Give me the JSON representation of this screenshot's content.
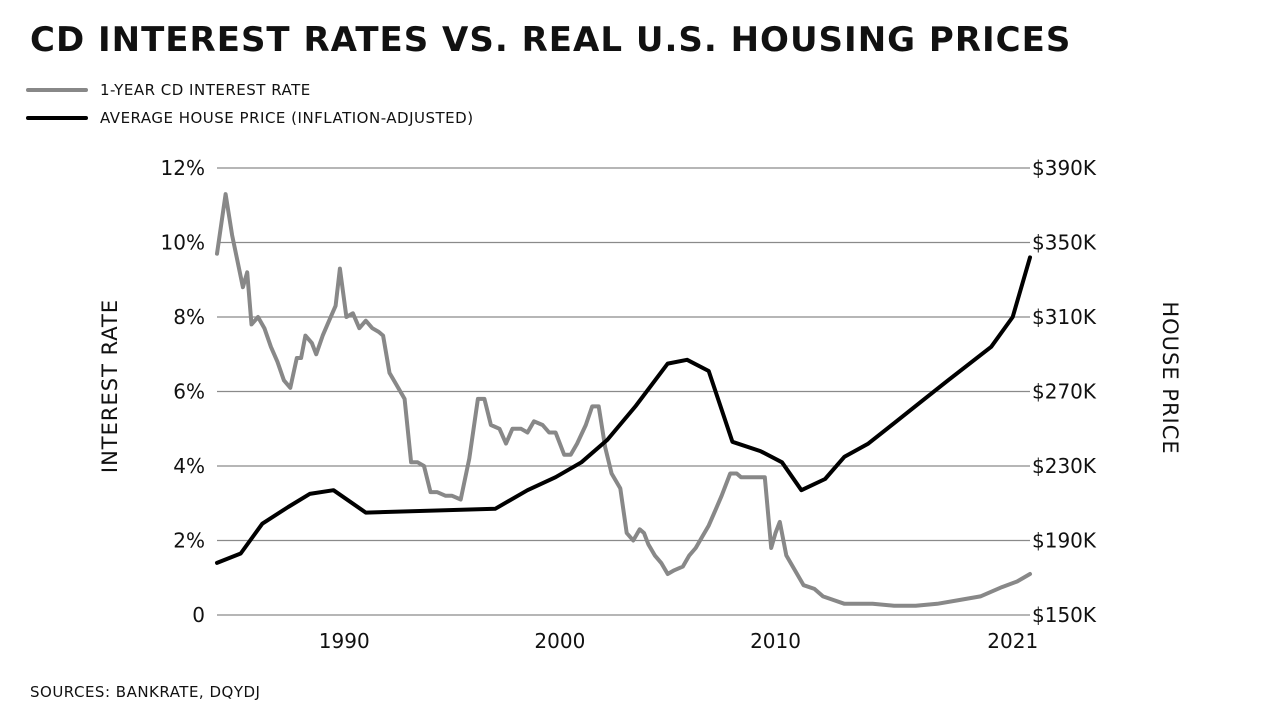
{
  "chart_data": {
    "type": "line",
    "title": "CD INTEREST RATES VS. REAL U.S. HOUSING PRICES",
    "source": "SOURCES: BANKRATE, DQYDJ",
    "x_ticks": [
      "1990",
      "2000",
      "2010",
      "2021"
    ],
    "xlim": [
      1984.1,
      2021.8
    ],
    "left_axis": {
      "label": "INTEREST RATE",
      "ticks": [
        "0",
        "2%",
        "4%",
        "6%",
        "8%",
        "10%",
        "12%"
      ],
      "tick_values": [
        0,
        2,
        4,
        6,
        8,
        10,
        12
      ],
      "ylim": [
        0,
        12
      ]
    },
    "right_axis": {
      "label": "HOUSE PRICE",
      "ticks": [
        "$150K",
        "$190K",
        "$230K",
        "$270K",
        "$310K",
        "$350K",
        "$390K"
      ],
      "tick_values": [
        150000,
        190000,
        230000,
        270000,
        310000,
        350000,
        390000
      ],
      "ylim": [
        150000,
        390000
      ]
    },
    "grid": true,
    "legend_position": "top-left",
    "series": [
      {
        "name": "1-YEAR CD INTEREST RATE",
        "color": "#888888",
        "axis": "left",
        "x": [
          1984.1,
          1984.5,
          1984.8,
          1985.3,
          1985.5,
          1985.7,
          1986.0,
          1986.3,
          1986.6,
          1986.9,
          1987.2,
          1987.5,
          1987.8,
          1988.0,
          1988.2,
          1988.5,
          1988.7,
          1989.0,
          1989.3,
          1989.6,
          1989.8,
          1990.1,
          1990.4,
          1990.7,
          1991.0,
          1991.3,
          1991.6,
          1991.8,
          1992.1,
          1992.4,
          1992.8,
          1993.1,
          1993.4,
          1993.7,
          1994.0,
          1994.3,
          1994.7,
          1995.0,
          1995.4,
          1995.8,
          1996.2,
          1996.5,
          1996.8,
          1997.2,
          1997.5,
          1997.8,
          1998.2,
          1998.5,
          1998.8,
          1999.2,
          1999.5,
          1999.8,
          2000.2,
          2000.5,
          2000.8,
          2001.2,
          2001.5,
          2001.8,
          2002.1,
          2002.4,
          2002.8,
          2003.1,
          2003.4,
          2003.7,
          2003.9,
          2004.1,
          2004.4,
          2004.7,
          2005.0,
          2005.3,
          2005.7,
          2006.0,
          2006.3,
          2006.6,
          2006.9,
          2007.2,
          2007.5,
          2007.9,
          2008.2,
          2008.4,
          2008.6,
          2008.9,
          2009.2,
          2009.5,
          2009.8,
          2010.0,
          2010.2,
          2010.5,
          2010.8,
          2011.3,
          2011.8,
          2012.2,
          2012.7,
          2013.2,
          2013.7,
          2014.5,
          2015.5,
          2016.5,
          2017.5,
          2018.5,
          2019.5,
          2020.5,
          2021.2,
          2021.8
        ],
        "y": [
          9.7,
          11.3,
          10.2,
          8.8,
          9.2,
          7.8,
          8.0,
          7.7,
          7.2,
          6.8,
          6.3,
          6.1,
          6.9,
          6.9,
          7.5,
          7.3,
          7.0,
          7.5,
          7.9,
          8.3,
          9.3,
          8.0,
          8.1,
          7.7,
          7.9,
          7.7,
          7.6,
          7.5,
          6.5,
          6.2,
          5.8,
          4.1,
          4.1,
          4.0,
          3.3,
          3.3,
          3.2,
          3.2,
          3.1,
          4.2,
          5.8,
          5.8,
          5.1,
          5.0,
          4.6,
          5.0,
          5.0,
          4.9,
          5.2,
          5.1,
          4.9,
          4.9,
          4.3,
          4.3,
          4.6,
          5.1,
          5.6,
          5.6,
          4.5,
          3.8,
          3.4,
          2.2,
          2.0,
          2.3,
          2.2,
          1.9,
          1.6,
          1.4,
          1.1,
          1.2,
          1.3,
          1.6,
          1.8,
          2.1,
          2.4,
          2.8,
          3.2,
          3.8,
          3.8,
          3.7,
          3.7,
          3.7,
          3.7,
          3.7,
          1.8,
          2.2,
          2.5,
          1.6,
          1.3,
          0.8,
          0.7,
          0.5,
          0.4,
          0.3,
          0.3,
          0.3,
          0.25,
          0.25,
          0.3,
          0.4,
          0.5,
          0.75,
          0.9,
          1.1
        ]
      },
      {
        "name": "AVERAGE HOUSE PRICE (INFLATION-ADJUSTED)",
        "color": "#000000",
        "axis": "right",
        "x": [
          1984.1,
          1985.2,
          1986.2,
          1987.4,
          1988.4,
          1989.5,
          1991.0,
          1997.0,
          1998.5,
          1999.8,
          2001.0,
          2002.2,
          2003.5,
          2005.0,
          2005.9,
          2006.9,
          2008.0,
          2009.3,
          2010.3,
          2011.2,
          2012.3,
          2013.2,
          2014.3,
          2015.5,
          2016.8,
          2018.0,
          2020.0,
          2021.0,
          2021.8
        ],
        "y": [
          178000,
          183000,
          199000,
          208000,
          215000,
          217000,
          205000,
          207000,
          217000,
          224000,
          232000,
          244000,
          262000,
          285000,
          287000,
          281000,
          243000,
          238000,
          232000,
          217000,
          223000,
          235000,
          242000,
          253000,
          265000,
          276000,
          294000,
          310000,
          342000
        ]
      }
    ]
  }
}
